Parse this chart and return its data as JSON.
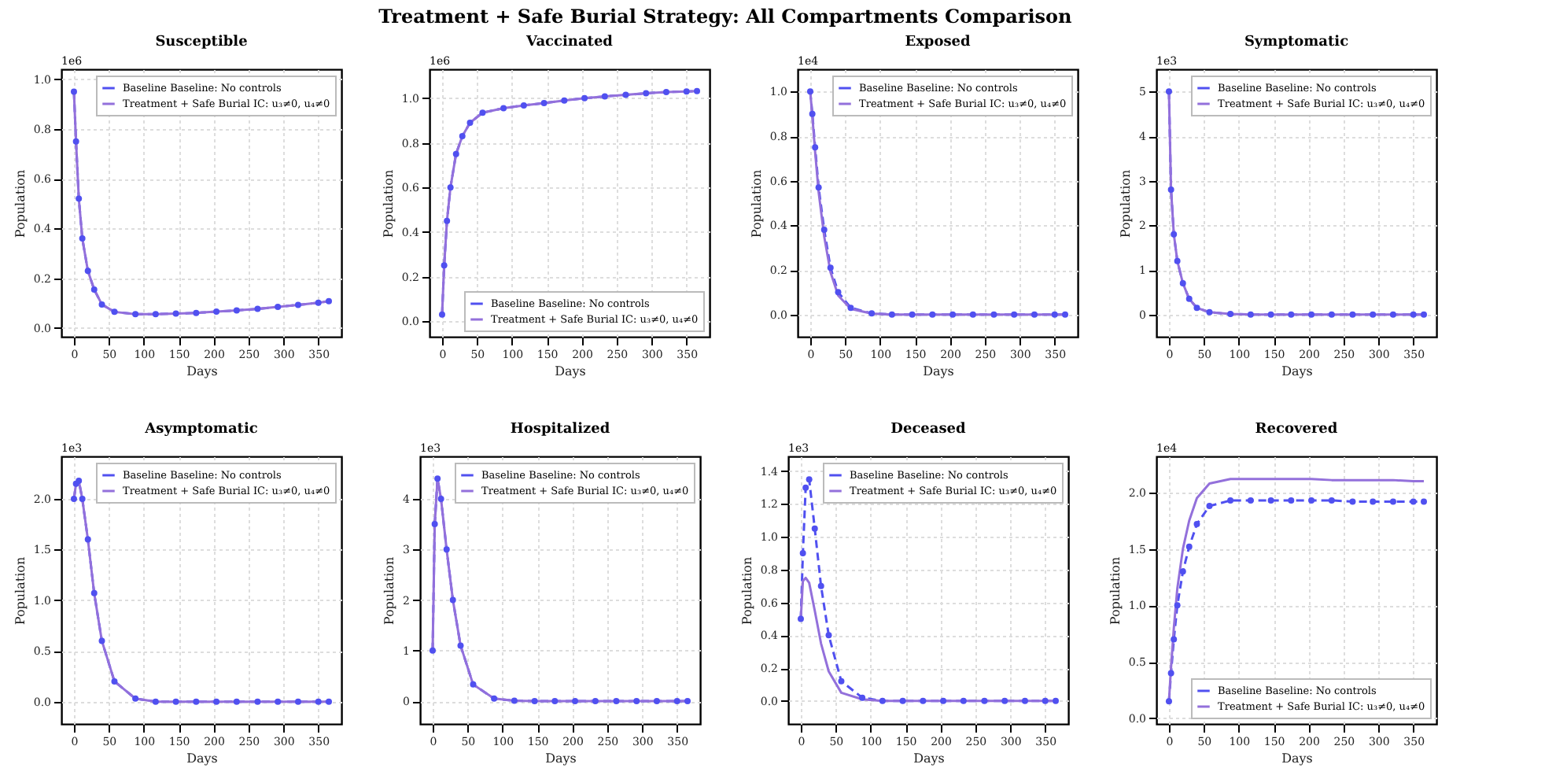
{
  "chart_data": [
    {
      "type": "line",
      "title": "Susceptible",
      "xlabel": "Days",
      "ylabel": "Population",
      "annotations": [
        "Treatment + Safe Burial Strategy: All Compartments Comparison",
        "1e6"
      ],
      "legend": "top right",
      "grid": true,
      "x": [
        0,
        3,
        7,
        12,
        20,
        29,
        40,
        58,
        88,
        117,
        146,
        175,
        204,
        233,
        263,
        292,
        321,
        350,
        365
      ],
      "xlim": [
        -18,
        383
      ],
      "xticks": [
        0,
        50,
        100,
        150,
        200,
        250,
        300,
        350
      ],
      "ylim": [
        -0.035,
        1.04
      ],
      "yticks": [
        {
          "value": 0,
          "label": "0.0"
        },
        {
          "value": 0.2,
          "label": "0.2"
        },
        {
          "value": 0.4,
          "label": "0.4"
        },
        {
          "value": 0.6,
          "label": "0.6"
        },
        {
          "value": 0.8,
          "label": "0.8"
        },
        {
          "value": 1,
          "label": "1.0"
        }
      ],
      "series": [
        {
          "name": "Baseline Baseline: No controls",
          "color": "#5050f0",
          "line_style": "dashed",
          "marker": "circle",
          "values": [
            0.95,
            0.75,
            0.52,
            0.36,
            0.23,
            0.155,
            0.095,
            0.065,
            0.056,
            0.056,
            0.058,
            0.061,
            0.066,
            0.071,
            0.077,
            0.085,
            0.093,
            0.102,
            0.108
          ]
        },
        {
          "name": "Treatment + Safe Burial IC: u₃≠0, u₄≠0",
          "color": "#9370db",
          "line_style": "solid",
          "marker": "none",
          "values": [
            0.95,
            0.75,
            0.52,
            0.36,
            0.23,
            0.155,
            0.095,
            0.065,
            0.056,
            0.056,
            0.058,
            0.061,
            0.066,
            0.071,
            0.077,
            0.085,
            0.093,
            0.102,
            0.108
          ]
        }
      ]
    },
    {
      "type": "line",
      "title": "Vaccinated",
      "xlabel": "Days",
      "ylabel": "Population",
      "annotations": [
        "1e6"
      ],
      "legend": "bottom right",
      "grid": true,
      "x": [
        0,
        3,
        7,
        12,
        20,
        29,
        40,
        58,
        88,
        117,
        146,
        175,
        204,
        233,
        263,
        292,
        321,
        350,
        365
      ],
      "xlim": [
        -18,
        383
      ],
      "xticks": [
        0,
        50,
        100,
        150,
        200,
        250,
        300,
        350
      ],
      "ylim": [
        -0.07,
        1.13
      ],
      "yticks": [
        {
          "value": 0,
          "label": "0.0"
        },
        {
          "value": 0.2,
          "label": "0.2"
        },
        {
          "value": 0.4,
          "label": "0.4"
        },
        {
          "value": 0.6,
          "label": "0.6"
        },
        {
          "value": 0.8,
          "label": "0.8"
        },
        {
          "value": 1,
          "label": "1.0"
        }
      ],
      "series": [
        {
          "name": "Baseline Baseline: No controls",
          "color": "#5050f0",
          "line_style": "dashed",
          "marker": "circle",
          "values": [
            0.03,
            0.25,
            0.45,
            0.6,
            0.75,
            0.83,
            0.89,
            0.935,
            0.955,
            0.968,
            0.978,
            0.99,
            1.0,
            1.008,
            1.015,
            1.022,
            1.028,
            1.03,
            1.032
          ]
        },
        {
          "name": "Treatment + Safe Burial IC: u₃≠0, u₄≠0",
          "color": "#9370db",
          "line_style": "solid",
          "marker": "none",
          "values": [
            0.03,
            0.25,
            0.45,
            0.6,
            0.75,
            0.83,
            0.89,
            0.935,
            0.955,
            0.968,
            0.978,
            0.99,
            1.0,
            1.008,
            1.015,
            1.022,
            1.028,
            1.03,
            1.032
          ]
        }
      ]
    },
    {
      "type": "line",
      "title": "Exposed",
      "xlabel": "Days",
      "ylabel": "Population",
      "annotations": [
        "1e4"
      ],
      "legend": "top right",
      "grid": true,
      "x": [
        0,
        3,
        7,
        12,
        20,
        29,
        40,
        58,
        88,
        117,
        146,
        175,
        204,
        233,
        263,
        292,
        321,
        350,
        365
      ],
      "xlim": [
        -18,
        383
      ],
      "xticks": [
        0,
        50,
        100,
        150,
        200,
        250,
        300,
        350
      ],
      "ylim": [
        -0.1,
        1.1
      ],
      "yticks": [
        {
          "value": 0,
          "label": "0.0"
        },
        {
          "value": 0.2,
          "label": "0.2"
        },
        {
          "value": 0.4,
          "label": "0.4"
        },
        {
          "value": 0.6,
          "label": "0.6"
        },
        {
          "value": 0.8,
          "label": "0.8"
        },
        {
          "value": 1,
          "label": "1.0"
        }
      ],
      "series": [
        {
          "name": "Baseline Baseline: No controls",
          "color": "#5050f0",
          "line_style": "dashed",
          "marker": "circle",
          "values": [
            1.0,
            0.9,
            0.75,
            0.57,
            0.38,
            0.21,
            0.1,
            0.03,
            0.005,
            0,
            0,
            0,
            0,
            0,
            0,
            0,
            0,
            0,
            0
          ]
        },
        {
          "name": "Treatment + Safe Burial IC: u₃≠0, u₄≠0",
          "color": "#9370db",
          "line_style": "solid",
          "marker": "none",
          "values": [
            1.0,
            0.89,
            0.73,
            0.55,
            0.35,
            0.19,
            0.085,
            0.025,
            0.004,
            0,
            0,
            0,
            0,
            0,
            0,
            0,
            0,
            0,
            0
          ]
        }
      ]
    },
    {
      "type": "line",
      "title": "Symptomatic",
      "xlabel": "Days",
      "ylabel": "Population",
      "annotations": [
        "1e3"
      ],
      "legend": "top right",
      "grid": true,
      "x": [
        0,
        3,
        7,
        12,
        20,
        29,
        40,
        58,
        88,
        117,
        146,
        175,
        204,
        233,
        263,
        292,
        321,
        350,
        365
      ],
      "xlim": [
        -18,
        383
      ],
      "xticks": [
        0,
        50,
        100,
        150,
        200,
        250,
        300,
        350
      ],
      "ylim": [
        -0.5,
        5.5
      ],
      "yticks": [
        0,
        1,
        2,
        3,
        4,
        5
      ],
      "series": [
        {
          "name": "Baseline Baseline: No controls",
          "color": "#5050f0",
          "line_style": "dashed",
          "marker": "circle",
          "values": [
            5,
            2.8,
            1.8,
            1.2,
            0.7,
            0.35,
            0.15,
            0.05,
            0.01,
            0,
            0,
            0,
            0,
            0,
            0,
            0,
            0,
            0,
            0
          ]
        },
        {
          "name": "Treatment + Safe Burial IC: u₃≠0, u₄≠0",
          "color": "#9370db",
          "line_style": "solid",
          "marker": "none",
          "values": [
            5,
            2.8,
            1.8,
            1.2,
            0.7,
            0.35,
            0.15,
            0.05,
            0.01,
            0,
            0,
            0,
            0,
            0,
            0,
            0,
            0,
            0,
            0
          ]
        }
      ]
    },
    {
      "type": "line",
      "title": "Asymptomatic",
      "xlabel": "Days",
      "ylabel": "Population",
      "annotations": [
        "1e3"
      ],
      "legend": "top right",
      "grid": true,
      "x": [
        0,
        3,
        7,
        12,
        20,
        29,
        40,
        58,
        88,
        117,
        146,
        175,
        204,
        233,
        263,
        292,
        321,
        350,
        365
      ],
      "xlim": [
        -18,
        383
      ],
      "xticks": [
        0,
        50,
        100,
        150,
        200,
        250,
        300,
        350
      ],
      "ylim": [
        -0.22,
        2.42
      ],
      "yticks": [
        {
          "value": 0,
          "label": "0.0"
        },
        {
          "value": 0.5,
          "label": "0.5"
        },
        {
          "value": 1,
          "label": "1.0"
        },
        {
          "value": 1.5,
          "label": "1.5"
        },
        {
          "value": 2,
          "label": "2.0"
        }
      ],
      "series": [
        {
          "name": "Baseline Baseline: No controls",
          "color": "#5050f0",
          "line_style": "dashed",
          "marker": "circle",
          "values": [
            2.0,
            2.15,
            2.18,
            2.0,
            1.6,
            1.07,
            0.6,
            0.2,
            0.03,
            0,
            0,
            0,
            0,
            0,
            0,
            0,
            0,
            0,
            0
          ]
        },
        {
          "name": "Treatment + Safe Burial IC: u₃≠0, u₄≠0",
          "color": "#9370db",
          "line_style": "solid",
          "marker": "none",
          "values": [
            2.0,
            2.15,
            2.18,
            2.0,
            1.6,
            1.07,
            0.6,
            0.2,
            0.03,
            0,
            0,
            0,
            0,
            0,
            0,
            0,
            0,
            0,
            0
          ]
        }
      ]
    },
    {
      "type": "line",
      "title": "Hospitalized",
      "xlabel": "Days",
      "ylabel": "Population",
      "annotations": [
        "1e3"
      ],
      "legend": "top right",
      "grid": true,
      "x": [
        0,
        3,
        7,
        12,
        20,
        29,
        40,
        58,
        88,
        117,
        146,
        175,
        204,
        233,
        263,
        292,
        321,
        350,
        365
      ],
      "xlim": [
        -18,
        383
      ],
      "xticks": [
        0,
        50,
        100,
        150,
        200,
        250,
        300,
        350
      ],
      "ylim": [
        -0.45,
        4.84
      ],
      "yticks": [
        0,
        1,
        2,
        3,
        4
      ],
      "series": [
        {
          "name": "Baseline Baseline: No controls",
          "color": "#5050f0",
          "line_style": "dashed",
          "marker": "circle",
          "values": [
            1.0,
            3.5,
            4.4,
            4.0,
            3.0,
            2.0,
            1.1,
            0.33,
            0.05,
            0.01,
            0,
            0,
            0,
            0,
            0,
            0,
            0,
            0,
            0
          ]
        },
        {
          "name": "Treatment + Safe Burial IC: u₃≠0, u₄≠0",
          "color": "#9370db",
          "line_style": "solid",
          "marker": "none",
          "values": [
            1.0,
            3.5,
            4.4,
            4.0,
            3.0,
            2.0,
            1.1,
            0.33,
            0.05,
            0.01,
            0,
            0,
            0,
            0,
            0,
            0,
            0,
            0,
            0
          ]
        }
      ]
    },
    {
      "type": "line",
      "title": "Deceased",
      "xlabel": "Days",
      "ylabel": "Population",
      "annotations": [
        "1e3"
      ],
      "legend": "top right",
      "grid": true,
      "x": [
        0,
        3,
        7,
        12,
        20,
        29,
        40,
        58,
        88,
        117,
        146,
        175,
        204,
        233,
        263,
        292,
        321,
        350,
        365
      ],
      "xlim": [
        -18,
        383
      ],
      "xticks": [
        0,
        50,
        100,
        150,
        200,
        250,
        300,
        350
      ],
      "ylim": [
        -0.14,
        1.49
      ],
      "yticks": [
        {
          "value": 0,
          "label": "0.0"
        },
        {
          "value": 0.2,
          "label": "0.2"
        },
        {
          "value": 0.4,
          "label": "0.4"
        },
        {
          "value": 0.6,
          "label": "0.6"
        },
        {
          "value": 0.8,
          "label": "0.8"
        },
        {
          "value": 1,
          "label": "1.0"
        },
        {
          "value": 1.2,
          "label": "1.2"
        },
        {
          "value": 1.4,
          "label": "1.4"
        }
      ],
      "series": [
        {
          "name": "Baseline Baseline: No controls",
          "color": "#5050f0",
          "line_style": "dashed",
          "marker": "circle",
          "values": [
            0.5,
            0.9,
            1.3,
            1.35,
            1.05,
            0.7,
            0.4,
            0.12,
            0.02,
            0,
            0,
            0,
            0,
            0,
            0,
            0,
            0,
            0,
            0
          ]
        },
        {
          "name": "Treatment + Safe Burial IC: u₃≠0, u₄≠0",
          "color": "#9370db",
          "line_style": "solid",
          "marker": "none",
          "values": [
            0.5,
            0.73,
            0.75,
            0.72,
            0.55,
            0.35,
            0.18,
            0.05,
            0.01,
            0,
            0,
            0,
            0,
            0,
            0,
            0,
            0,
            0,
            0
          ]
        }
      ]
    },
    {
      "type": "line",
      "title": "Recovered",
      "xlabel": "Days",
      "ylabel": "Population",
      "annotations": [
        "1e4"
      ],
      "legend": "bottom right",
      "grid": true,
      "x": [
        0,
        3,
        7,
        12,
        20,
        29,
        40,
        58,
        88,
        117,
        146,
        175,
        204,
        233,
        263,
        292,
        321,
        350,
        365
      ],
      "xlim": [
        -18,
        383
      ],
      "xticks": [
        0,
        50,
        100,
        150,
        200,
        250,
        300,
        350
      ],
      "ylim": [
        -0.05,
        2.32
      ],
      "yticks": [
        {
          "value": 0,
          "label": "0.0"
        },
        {
          "value": 0.5,
          "label": "0.5"
        },
        {
          "value": 1,
          "label": "1.0"
        },
        {
          "value": 1.5,
          "label": "1.5"
        },
        {
          "value": 2,
          "label": "2.0"
        }
      ],
      "series": [
        {
          "name": "Baseline Baseline: No controls",
          "color": "#5050f0",
          "line_style": "dashed",
          "marker": "circle",
          "values": [
            0.15,
            0.4,
            0.7,
            1.0,
            1.3,
            1.52,
            1.72,
            1.88,
            1.93,
            1.93,
            1.93,
            1.93,
            1.93,
            1.93,
            1.92,
            1.92,
            1.92,
            1.92,
            1.92
          ]
        },
        {
          "name": "Treatment + Safe Burial IC: u₃≠0, u₄≠0",
          "color": "#9370db",
          "line_style": "solid",
          "marker": "none",
          "values": [
            0.15,
            0.45,
            0.8,
            1.15,
            1.5,
            1.75,
            1.95,
            2.08,
            2.12,
            2.12,
            2.12,
            2.12,
            2.12,
            2.11,
            2.11,
            2.11,
            2.11,
            2.1,
            2.1
          ]
        }
      ]
    }
  ]
}
